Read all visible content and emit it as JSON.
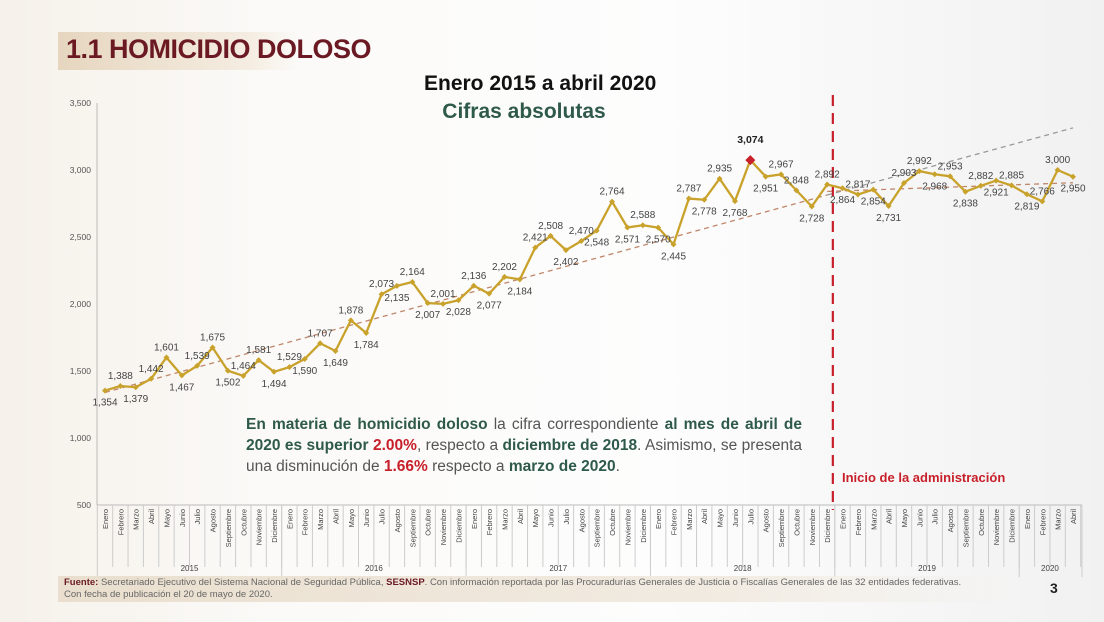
{
  "slide": {
    "title": "1.1 HOMICIDIO DOLOSO",
    "subtitle": "Enero 2015 a abril 2020",
    "subtitle2": "Cifras absolutas",
    "page_number": "3",
    "inicio_label": "Inicio de la administración",
    "note": {
      "p1": "En materia de homicidio doloso",
      "p2": " la cifra correspondiente ",
      "p3": "al mes de abril de 2020 es superior",
      "p4": "2.00%",
      "p5": ", respecto a ",
      "p6": "diciembre de 2018",
      "p7": ". Asimismo, se presenta una disminución de ",
      "p8": "1.66%",
      "p9": " respecto a ",
      "p10": "marzo de 2020",
      "p11": "."
    },
    "source": {
      "label": "Fuente:",
      "text1": " Secretariado Ejecutivo del Sistema Nacional de Seguridad Pública, ",
      "sesnsp": "SESNSP",
      "text2": ". Con información reportada por las Procuradurías Generales de Justicia o Fiscalías Generales de las 32 entidades federativas.",
      "text3": "Con fecha de publicación el 20 de mayo de 2020."
    },
    "colors": {
      "line": "#c9a22c",
      "highlight": "#c8202a",
      "trend": "#c0876a",
      "trend2": "#999999",
      "title": "#6b1a23",
      "green": "#2f5a4b"
    }
  },
  "chart_data": {
    "type": "line",
    "title": "Enero 2015 a abril 2020",
    "subtitle": "Cifras absolutas",
    "ylim": [
      500,
      3500
    ],
    "yticks": [
      "500",
      "1,000",
      "1,500",
      "2,000",
      "2,500",
      "3,000",
      "3,500"
    ],
    "ytick_values": [
      500,
      1000,
      1500,
      2000,
      2500,
      3000,
      3500
    ],
    "months": [
      "Enero",
      "Febrero",
      "Marzo",
      "Abril",
      "Mayo",
      "Junio",
      "Julio",
      "Agosto",
      "Septiembre",
      "Octubre",
      "Noviembre",
      "Diciembre"
    ],
    "years": [
      {
        "label": "2015",
        "months": 12
      },
      {
        "label": "2016",
        "months": 12
      },
      {
        "label": "2017",
        "months": 12
      },
      {
        "label": "2018",
        "months": 12
      },
      {
        "label": "2019",
        "months": 12
      },
      {
        "label": "2020",
        "months": 4
      }
    ],
    "series": [
      {
        "name": "Homicidio doloso",
        "values": [
          1354,
          1388,
          1379,
          1442,
          1601,
          1467,
          1539,
          1675,
          1502,
          1464,
          1581,
          1494,
          1529,
          1590,
          1707,
          1649,
          1878,
          1784,
          2073,
          2135,
          2164,
          2007,
          2001,
          2028,
          2136,
          2077,
          2202,
          2184,
          2421,
          2508,
          2402,
          2470,
          2548,
          2764,
          2571,
          2588,
          2570,
          2445,
          2787,
          2778,
          2935,
          2768,
          3074,
          2951,
          2967,
          2848,
          2728,
          2892,
          2864,
          2817,
          2854,
          2731,
          2903,
          2992,
          2968,
          2953,
          2838,
          2882,
          2921,
          2885,
          2819,
          2766,
          3000,
          2950
        ],
        "labels": [
          "1,354",
          "1,388",
          "1,379",
          "1,442",
          "1,601",
          "1,467",
          "1,539",
          "1,675",
          "1,502",
          "1,464",
          "1,581",
          "1,494",
          "1,529",
          "1,590",
          "1,707",
          "1,649",
          "1,878",
          "1,784",
          "2,073",
          "2,135",
          "2,164",
          "2,007",
          "2,001",
          "2,028",
          "2,136",
          "2,077",
          "2,202",
          "2,184",
          "2,421",
          "2,508",
          "2,402",
          "2,470",
          "2,548",
          "2,764",
          "2,571",
          "2,588",
          "2,570",
          "2,445",
          "2,787",
          "2,778",
          "2,935",
          "2,768",
          "3,074",
          "2,951",
          "2,967",
          "2,848",
          "2,728",
          "2,892",
          "2,864",
          "2,817",
          "2,854",
          "2,731",
          "2,903",
          "2,992",
          "2,968",
          "2,953",
          "2,838",
          "2,882",
          "2,921",
          "2,885",
          "2,819",
          "2,766",
          "3,000",
          "2,950"
        ]
      }
    ],
    "max_highlight_index": 42,
    "vertical_marker_index": 47,
    "trendlines": [
      {
        "name": "tendencia 2015-2018",
        "from": [
          0,
          1340
        ],
        "to": [
          47,
          2813
        ],
        "style": "dashed"
      },
      {
        "name": "tendencia proyectada",
        "from": [
          47,
          2813
        ],
        "to": [
          63,
          3314
        ],
        "style": "dashed"
      },
      {
        "name": "tendencia 2019-2020",
        "from": [
          47,
          2840
        ],
        "to": [
          63,
          2905
        ],
        "style": "dashed"
      }
    ],
    "grid": false,
    "legend": "none"
  }
}
